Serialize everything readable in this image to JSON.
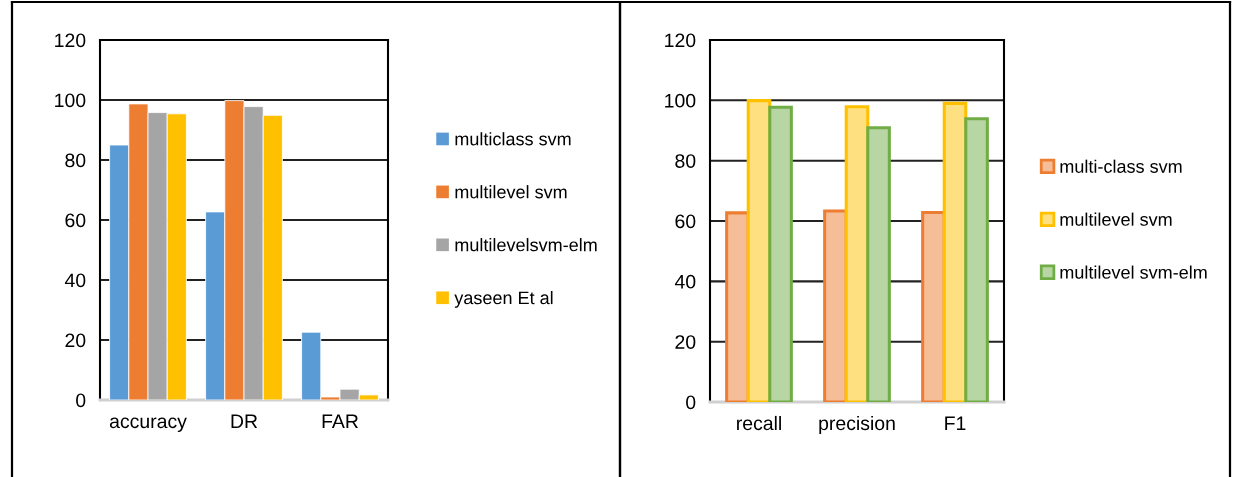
{
  "chart_data": [
    {
      "type": "bar",
      "categories": [
        "accuracy",
        "DR",
        "FAR"
      ],
      "ylim": [
        0,
        120
      ],
      "yticks": [
        0,
        20,
        40,
        60,
        80,
        100,
        120
      ],
      "grid": "y",
      "legend": "right",
      "series": [
        {
          "name": "multiclass svm",
          "color": "#5b9bd5",
          "values": [
            85,
            62.7,
            22.6
          ]
        },
        {
          "name": "multilevel svm",
          "color": "#ed7d31",
          "values": [
            98.7,
            99.8,
            1
          ]
        },
        {
          "name": "multilevelsvm-elm",
          "color": "#a5a5a5",
          "values": [
            95.8,
            97.8,
            3.6
          ]
        },
        {
          "name": "yaseen Et al",
          "color": "#ffc000",
          "values": [
            95.4,
            94.9,
            1.7
          ]
        }
      ]
    },
    {
      "type": "bar",
      "categories": [
        "recall",
        "precision",
        "F1"
      ],
      "ylim": [
        0,
        120
      ],
      "yticks": [
        0,
        20,
        40,
        60,
        80,
        100,
        120
      ],
      "grid": "y",
      "legend": "right",
      "series": [
        {
          "name": "multi-class svm",
          "color": "#ed7d31",
          "values": [
            62.7,
            63.3,
            62.8
          ]
        },
        {
          "name": "multilevel svm",
          "color": "#ffc000",
          "values": [
            99.9,
            97.9,
            99
          ]
        },
        {
          "name": "multilevel svm-elm",
          "color": "#70ad47",
          "values": [
            97.7,
            90.9,
            93.9
          ]
        }
      ]
    }
  ]
}
